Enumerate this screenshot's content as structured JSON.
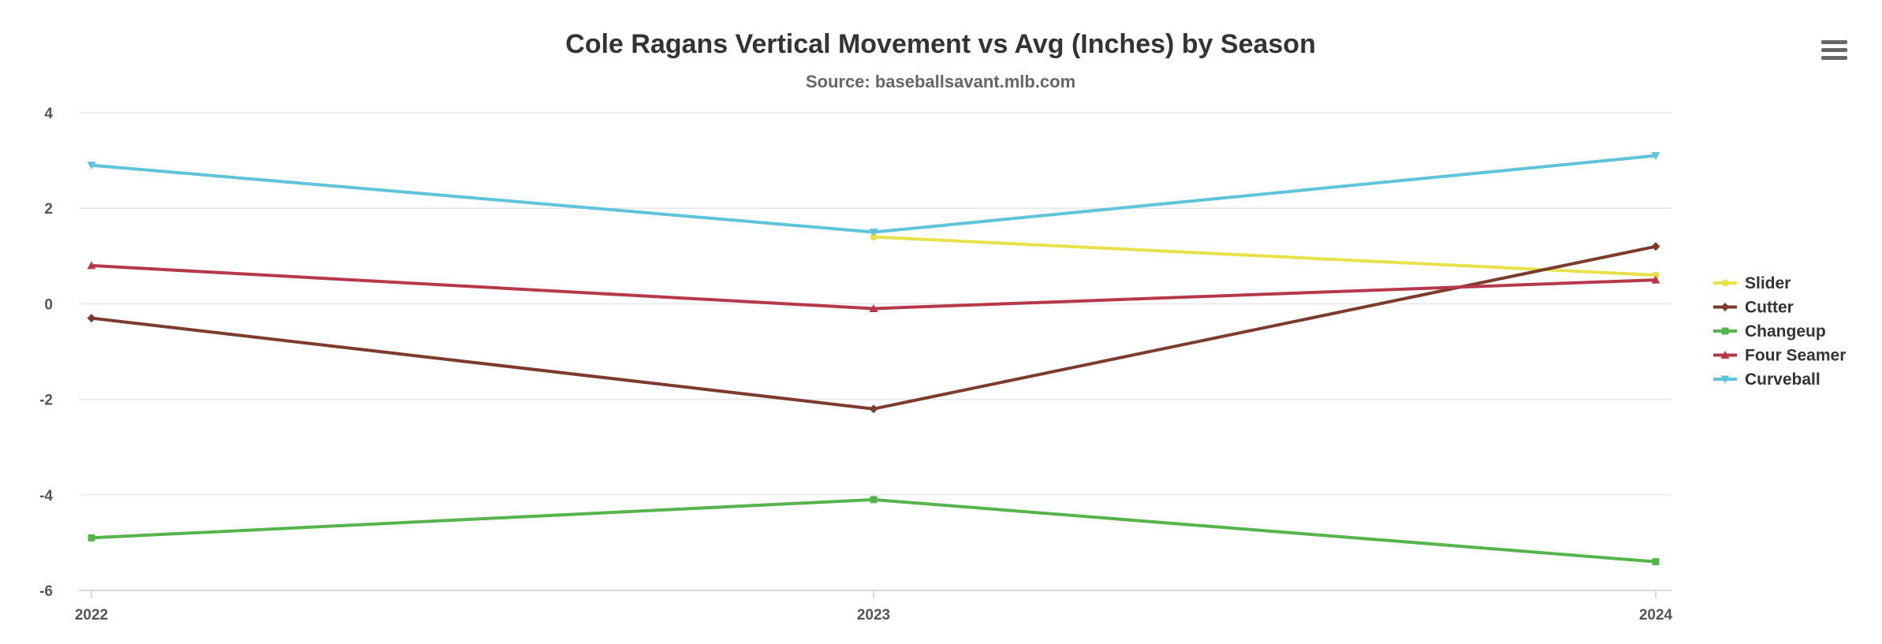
{
  "chart_data": {
    "type": "line",
    "title": "Cole Ragans Vertical Movement vs Avg (Inches) by Season",
    "subtitle": "Source: baseballsavant.mlb.com",
    "x": [
      "2022",
      "2023",
      "2024"
    ],
    "yticks": [
      "4",
      "2",
      "0",
      "-2",
      "-4",
      "-6"
    ],
    "ylim": [
      -6,
      4
    ],
    "grid": true,
    "legend_position": "right",
    "series": [
      {
        "name": "Slider",
        "color": "#e8e24a",
        "marker": "circle",
        "values": [
          null,
          1.4,
          0.6
        ]
      },
      {
        "name": "Cutter",
        "color": "#7d3b2e",
        "marker": "diamond",
        "values": [
          -0.3,
          -2.2,
          1.2
        ]
      },
      {
        "name": "Changeup",
        "color": "#55b44b",
        "marker": "square",
        "values": [
          -4.9,
          -4.1,
          -5.4
        ]
      },
      {
        "name": "Four Seamer",
        "color": "#b5394a",
        "marker": "triangle",
        "values": [
          0.8,
          -0.1,
          0.5
        ]
      },
      {
        "name": "Curveball",
        "color": "#5fc4d9",
        "marker": "triangle-down",
        "values": [
          2.9,
          1.5,
          3.1
        ]
      }
    ]
  },
  "menu": {
    "icon": "hamburger-menu-icon"
  }
}
